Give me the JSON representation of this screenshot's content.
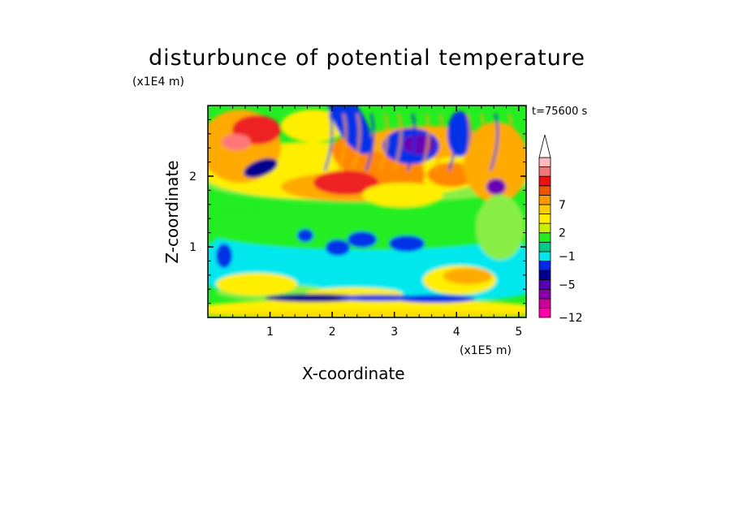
{
  "chart_data": {
    "type": "heatmap",
    "title": "disturbunce of potential temperature",
    "xlabel": "X-coordinate",
    "ylabel": "Z-coordinate",
    "x_unit": "(x1E5 m)",
    "y_unit": "(x1E4 m)",
    "time_label": "t=75600 s",
    "xlim": [
      0,
      5.12
    ],
    "ylim": [
      0,
      3.0
    ],
    "x_ticks": [
      {
        "value": 1,
        "label": "1"
      },
      {
        "value": 2,
        "label": "2"
      },
      {
        "value": 3,
        "label": "3"
      },
      {
        "value": 4,
        "label": "4"
      },
      {
        "value": 5,
        "label": "5"
      }
    ],
    "y_ticks": [
      {
        "value": 1,
        "label": "1"
      },
      {
        "value": 2,
        "label": "2"
      }
    ],
    "colorbar": {
      "colors": [
        "#ff00a8",
        "#cc0099",
        "#8800aa",
        "#5a00b4",
        "#000090",
        "#0028e6",
        "#00e8ee",
        "#00cc88",
        "#22ee22",
        "#ccee00",
        "#ffee00",
        "#ffcc00",
        "#ff9900",
        "#ee5500",
        "#ee1111",
        "#ee7777",
        "#ffbbbb",
        "#ffffff"
      ],
      "tick_labels": [
        {
          "level": -12,
          "label": "−12"
        },
        {
          "level": -5,
          "label": "−5"
        },
        {
          "level": -1,
          "label": "−1"
        },
        {
          "level": 2,
          "label": "2"
        },
        {
          "level": 7,
          "label": "7"
        }
      ],
      "extend": "max"
    }
  }
}
